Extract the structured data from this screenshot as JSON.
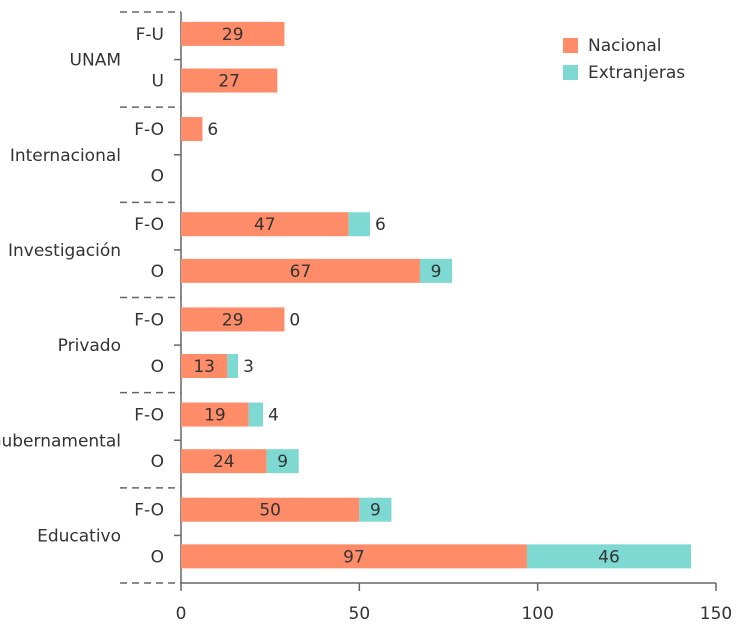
{
  "chart_data": {
    "type": "bar",
    "orientation": "horizontal",
    "stacked": true,
    "xlim": [
      0,
      150
    ],
    "xticks": [
      "0",
      "50",
      "100",
      "150"
    ],
    "grid": false,
    "legend_position": "top-right",
    "groups": [
      {
        "name": "UNAM",
        "rows": [
          {
            "label": "F-U",
            "values": [
              29,
              null
            ]
          },
          {
            "label": "U",
            "values": [
              27,
              null
            ]
          }
        ]
      },
      {
        "name": "Internacional",
        "rows": [
          {
            "label": "F-O",
            "values": [
              6,
              null
            ]
          },
          {
            "label": "O",
            "values": [
              null,
              null
            ]
          }
        ]
      },
      {
        "name": "Investigación",
        "rows": [
          {
            "label": "F-O",
            "values": [
              47,
              6
            ]
          },
          {
            "label": "O",
            "values": [
              67,
              9
            ]
          }
        ]
      },
      {
        "name": "Privado",
        "rows": [
          {
            "label": "F-O",
            "values": [
              29,
              0
            ]
          },
          {
            "label": "O",
            "values": [
              13,
              3
            ]
          }
        ]
      },
      {
        "name": "Gubernamental",
        "rows": [
          {
            "label": "F-O",
            "values": [
              19,
              4
            ]
          },
          {
            "label": "O",
            "values": [
              24,
              9
            ]
          }
        ]
      },
      {
        "name": "Educativo",
        "rows": [
          {
            "label": "F-O",
            "values": [
              50,
              9
            ]
          },
          {
            "label": "O",
            "values": [
              97,
              46
            ]
          }
        ]
      }
    ],
    "series": [
      {
        "name": "Nacional",
        "color": "#FF8C69"
      },
      {
        "name": "Extranjeras",
        "color": "#7DD9D2"
      }
    ]
  }
}
